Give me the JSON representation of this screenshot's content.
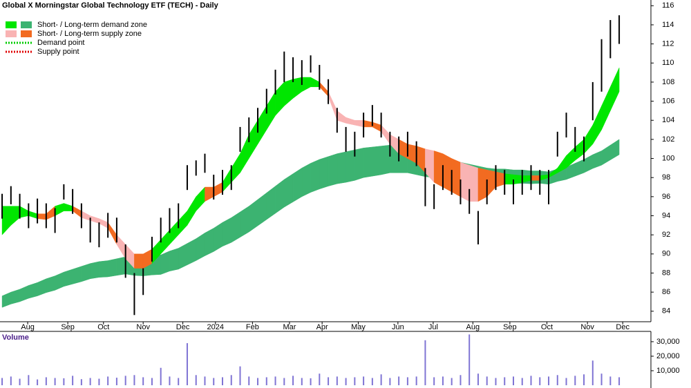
{
  "chart_data": [
    {
      "type": "range",
      "title": "Global X Morningstar Global Technology ETF (TECH) - Daily",
      "legend": [
        {
          "label": "Short- / Long-term demand zone",
          "colors": [
            "#00e600",
            "#3cb371"
          ],
          "style": "box"
        },
        {
          "label": "Short- / Long-term supply zone",
          "colors": [
            "#f9b3b3",
            "#f26b21"
          ],
          "style": "box"
        },
        {
          "label": "Demand point",
          "colors": [
            "#00cc00"
          ],
          "style": "dotted"
        },
        {
          "label": "Supply point",
          "colors": [
            "#e00000"
          ],
          "style": "dotted"
        }
      ],
      "color": "#000000",
      "x": [
        0,
        1,
        2,
        3,
        4,
        5,
        6,
        7,
        8,
        9,
        10,
        11,
        12,
        13,
        14,
        15,
        16,
        17,
        18,
        19,
        20,
        21,
        22,
        23,
        24,
        25,
        26,
        27,
        28,
        29,
        30,
        31,
        32,
        33,
        34,
        35,
        36,
        37,
        38,
        39,
        40,
        41,
        42,
        43,
        44,
        45,
        46,
        47,
        48,
        49,
        50,
        51,
        52,
        53,
        54,
        55,
        56,
        57,
        58,
        59,
        60,
        61,
        62,
        63,
        64,
        65,
        66,
        67,
        68,
        69,
        70
      ],
      "high": [
        96.3,
        97.1,
        96.3,
        95.3,
        95.8,
        95.3,
        94.8,
        97.3,
        96.8,
        95.3,
        93.8,
        93.3,
        94.3,
        93.8,
        91,
        88,
        88.5,
        91.8,
        93.8,
        94.8,
        95.3,
        99.3,
        99.8,
        100.5,
        98.3,
        98.8,
        99.3,
        103.3,
        104.3,
        105.3,
        107.3,
        109.3,
        111.2,
        110.6,
        110.3,
        110.8,
        109.8,
        108.3,
        105.3,
        103.3,
        102.8,
        104.8,
        105.6,
        104.8,
        102.8,
        102.3,
        102.8,
        101.8,
        99,
        97.3,
        99.3,
        98.8,
        97.8,
        96.8,
        94.5,
        97.8,
        99.3,
        98.8,
        97.8,
        98.8,
        99.3,
        98.8,
        98.8,
        102.8,
        104.8,
        103.3,
        102.3,
        108,
        112.5,
        114.5,
        115
      ],
      "low": [
        93.7,
        95.2,
        93.7,
        92.7,
        93.2,
        92.7,
        92.2,
        95.7,
        94.2,
        92.7,
        91.2,
        90.7,
        91.7,
        91.2,
        87.5,
        83.6,
        85.7,
        89.2,
        91.2,
        92.2,
        92.7,
        96.7,
        98.2,
        98.5,
        95.7,
        96.2,
        96.7,
        100.7,
        101.7,
        102.7,
        104.7,
        106.7,
        108,
        108,
        107.7,
        109,
        107.2,
        105.7,
        102.7,
        100.7,
        100.2,
        102.2,
        103.4,
        102.2,
        100.2,
        99.7,
        100.2,
        99.2,
        95,
        94.7,
        96.7,
        96.2,
        95.2,
        94.2,
        91,
        95.2,
        96.7,
        96.2,
        95.2,
        96.2,
        96.7,
        96.2,
        95.2,
        100.2,
        102.2,
        100.7,
        99.7,
        104,
        107,
        110.5,
        112
      ],
      "long_band": {
        "color": "#3cb371",
        "upper": [
          85.6,
          86,
          86.3,
          86.7,
          87,
          87.4,
          87.7,
          88.1,
          88.4,
          88.7,
          89,
          89.2,
          89.3,
          89.5,
          89.7,
          89.6,
          89.6,
          89.8,
          89.9,
          90.3,
          90.6,
          91.1,
          91.6,
          92.2,
          92.7,
          93.3,
          93.8,
          94.4,
          95,
          95.7,
          96.4,
          97.1,
          97.8,
          98.4,
          99,
          99.5,
          99.9,
          100.2,
          100.5,
          100.7,
          100.9,
          101.1,
          101.2,
          101.3,
          101.4,
          101.3,
          101.2,
          100.9,
          100.6,
          100.4,
          100.1,
          99.9,
          99.6,
          99.4,
          99.2,
          99,
          98.9,
          98.9,
          98.8,
          98.8,
          98.7,
          98.7,
          98.6,
          98.9,
          99.1,
          99.5,
          99.9,
          100.4,
          100.8,
          101.4,
          102
        ],
        "lower": [
          84.4,
          84.75,
          85,
          85.35,
          85.6,
          85.95,
          86.2,
          86.6,
          86.85,
          87.1,
          87.4,
          87.55,
          87.6,
          87.75,
          87.9,
          87.75,
          87.7,
          87.8,
          87.85,
          88.2,
          88.4,
          88.85,
          89.3,
          89.8,
          90.25,
          90.8,
          91.2,
          91.75,
          92.3,
          92.95,
          93.6,
          94.25,
          94.9,
          95.45,
          96,
          96.45,
          96.8,
          97.1,
          97.35,
          97.5,
          97.7,
          98,
          98.15,
          98.3,
          98.5,
          98.5,
          98.5,
          98.3,
          98.1,
          98,
          97.8,
          97.7,
          97.5,
          97.4,
          97.35,
          97.25,
          97.3,
          97.4,
          97.35,
          97.4,
          97.35,
          97.4,
          97.3,
          97.6,
          97.8,
          98.15,
          98.5,
          98.95,
          99.3,
          99.85,
          100.4
        ]
      },
      "short_band": {
        "upper": [
          95,
          95,
          95,
          94.5,
          94.2,
          94.2,
          95,
          95.3,
          95,
          94.5,
          94,
          93.7,
          93.3,
          92,
          91,
          90,
          90,
          90.5,
          91.5,
          92.5,
          93.5,
          94.5,
          96,
          97,
          97,
          97.5,
          99,
          100.5,
          102.5,
          104,
          105.5,
          107,
          108,
          108.3,
          108.5,
          108.5,
          108,
          107,
          105,
          104.3,
          104,
          104,
          103.8,
          103.5,
          102.5,
          102,
          101.5,
          101.3,
          101,
          100.8,
          100.5,
          100,
          99.6,
          99.3,
          99,
          98.8,
          98.6,
          98.4,
          98.3,
          98.2,
          98.2,
          98.2,
          98.3,
          99,
          100.3,
          101.2,
          102,
          103.5,
          105.5,
          107.5,
          109.5
        ],
        "lower": [
          92,
          93,
          93.8,
          94,
          93.7,
          93.6,
          94,
          94.5,
          94.5,
          93.8,
          93.5,
          93.2,
          92.7,
          91,
          89.5,
          88.5,
          88.5,
          89,
          90,
          91,
          92,
          93,
          94.5,
          95.5,
          96,
          96.5,
          97.5,
          98.5,
          100,
          101.5,
          103,
          104.5,
          105.5,
          106.3,
          107,
          107.5,
          107.5,
          106.5,
          104,
          103.7,
          103.5,
          103.3,
          103.3,
          102.8,
          101.5,
          100.5,
          100,
          99.5,
          98.5,
          97.5,
          97,
          96.5,
          96,
          95.5,
          95.5,
          96,
          97,
          97.3,
          97.3,
          97.5,
          97.7,
          97.7,
          98,
          98.5,
          99,
          99.8,
          100.5,
          101.5,
          103,
          105,
          107
        ],
        "zone_colors": [
          "#00e600",
          "#00e600",
          "#00e600",
          "#00e600",
          "#f26b21",
          "#f26b21",
          "#00e600",
          "#00e600",
          "#f26b21",
          "#f9b3b3",
          "#f9b3b3",
          "#f9b3b3",
          "#f26b21",
          "#f9b3b3",
          "#f9b3b3",
          "#f26b21",
          "#f26b21",
          "#00e600",
          "#00e600",
          "#00e600",
          "#00e600",
          "#00e600",
          "#00e600",
          "#f26b21",
          "#f26b21",
          "#00e600",
          "#00e600",
          "#00e600",
          "#00e600",
          "#00e600",
          "#00e600",
          "#00e600",
          "#00e600",
          "#00e600",
          "#00e600",
          "#00e600",
          "#f26b21",
          "#f9b3b3",
          "#f9b3b3",
          "#f9b3b3",
          "#f9b3b3",
          "#f26b21",
          "#f26b21",
          "#f9b3b3",
          "#f9b3b3",
          "#f26b21",
          "#f26b21",
          "#f26b21",
          "#f9b3b3",
          "#f26b21",
          "#f26b21",
          "#f26b21",
          "#f9b3b3",
          "#f9b3b3",
          "#f26b21",
          "#f26b21",
          "#f26b21",
          "#00e600",
          "#00e600",
          "#00e600",
          "#f26b21",
          "#00e600",
          "#00e600",
          "#00e600",
          "#00e600",
          "#00e600",
          "#00e600",
          "#00e600",
          "#00e600",
          "#00e600",
          "#00e600"
        ]
      },
      "xlim": [
        -0.24,
        73.6
      ],
      "xticks": [
        {
          "value": 2.9,
          "label": "Aug"
        },
        {
          "value": 7.45,
          "label": "Sep"
        },
        {
          "value": 11.5,
          "label": "Oct"
        },
        {
          "value": 16,
          "label": "Nov"
        },
        {
          "value": 20.5,
          "label": "Dec"
        },
        {
          "value": 24.2,
          "label": "2024"
        },
        {
          "value": 28.4,
          "label": "Feb"
        },
        {
          "value": 32.6,
          "label": "Mar"
        },
        {
          "value": 36.3,
          "label": "Apr"
        },
        {
          "value": 40.4,
          "label": "May"
        },
        {
          "value": 44.9,
          "label": "Jun"
        },
        {
          "value": 48.9,
          "label": "Jul"
        },
        {
          "value": 53.4,
          "label": "Aug"
        },
        {
          "value": 57.6,
          "label": "Sep"
        },
        {
          "value": 61.8,
          "label": "Oct"
        },
        {
          "value": 66.4,
          "label": "Nov"
        },
        {
          "value": 70.4,
          "label": "Dec"
        }
      ],
      "ylim": [
        82.9,
        116.6
      ],
      "yticks": [
        84,
        86,
        88,
        90,
        92,
        94,
        96,
        98,
        100,
        102,
        104,
        106,
        108,
        110,
        112,
        114,
        116
      ]
    },
    {
      "type": "bar",
      "title": "Volume",
      "color": "#7f74d4",
      "values": [
        5000,
        6000,
        4500,
        7000,
        4000,
        5500,
        5000,
        4800,
        6500,
        4200,
        5000,
        4500,
        6000,
        5200,
        6500,
        7000,
        5500,
        5000,
        12000,
        6000,
        5000,
        29000,
        7000,
        6000,
        5000,
        5500,
        7000,
        13000,
        6000,
        5000,
        5500,
        6000,
        5000,
        6500,
        5000,
        4800,
        8000,
        5500,
        6000,
        5000,
        5500,
        6000,
        5000,
        7500,
        5000,
        6000,
        5500,
        6000,
        31000,
        5500,
        6000,
        5000,
        7000,
        35000,
        8000,
        6000,
        5000,
        5500,
        6000,
        5000,
        6500,
        5500,
        6000,
        7000,
        5000,
        6500,
        7500,
        17000,
        8000,
        6000,
        5500
      ],
      "ylim": [
        0,
        37100
      ],
      "yticks": [
        {
          "value": 10000,
          "label": "10,000"
        },
        {
          "value": 20000,
          "label": "20,000"
        },
        {
          "value": 30000,
          "label": "30,000"
        }
      ]
    }
  ]
}
